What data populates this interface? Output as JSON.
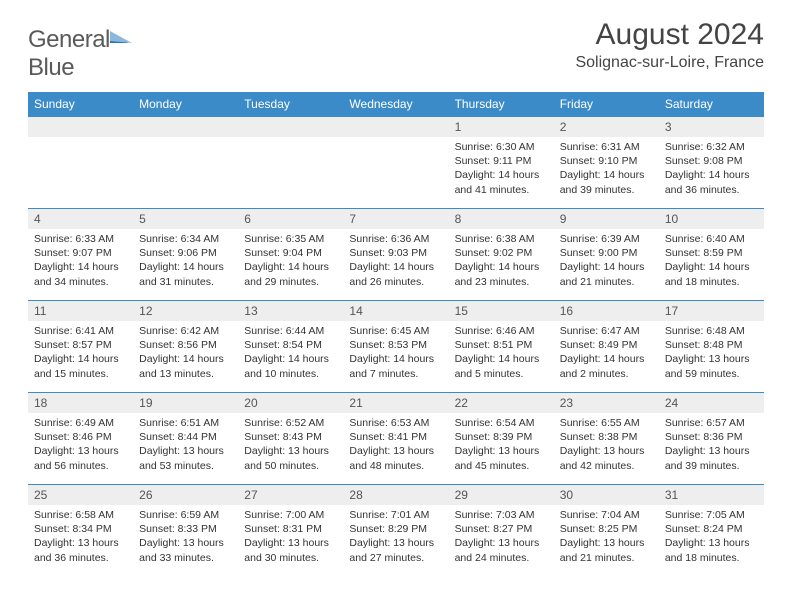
{
  "logo": {
    "word1": "General",
    "word2": "Blue"
  },
  "title": "August 2024",
  "location": "Solignac-sur-Loire, France",
  "colors": {
    "header_bg": "#3b8bc9",
    "header_text": "#ffffff",
    "daynum_bg": "#eeeeee",
    "border": "#3b8bc9",
    "text": "#333333",
    "logo_gray": "#5a5a5a",
    "logo_blue": "#2f73b5"
  },
  "day_headers": [
    "Sunday",
    "Monday",
    "Tuesday",
    "Wednesday",
    "Thursday",
    "Friday",
    "Saturday"
  ],
  "weeks": [
    [
      null,
      null,
      null,
      null,
      {
        "n": "1",
        "sr": "6:30 AM",
        "ss": "9:11 PM",
        "dl": "14 hours and 41 minutes."
      },
      {
        "n": "2",
        "sr": "6:31 AM",
        "ss": "9:10 PM",
        "dl": "14 hours and 39 minutes."
      },
      {
        "n": "3",
        "sr": "6:32 AM",
        "ss": "9:08 PM",
        "dl": "14 hours and 36 minutes."
      }
    ],
    [
      {
        "n": "4",
        "sr": "6:33 AM",
        "ss": "9:07 PM",
        "dl": "14 hours and 34 minutes."
      },
      {
        "n": "5",
        "sr": "6:34 AM",
        "ss": "9:06 PM",
        "dl": "14 hours and 31 minutes."
      },
      {
        "n": "6",
        "sr": "6:35 AM",
        "ss": "9:04 PM",
        "dl": "14 hours and 29 minutes."
      },
      {
        "n": "7",
        "sr": "6:36 AM",
        "ss": "9:03 PM",
        "dl": "14 hours and 26 minutes."
      },
      {
        "n": "8",
        "sr": "6:38 AM",
        "ss": "9:02 PM",
        "dl": "14 hours and 23 minutes."
      },
      {
        "n": "9",
        "sr": "6:39 AM",
        "ss": "9:00 PM",
        "dl": "14 hours and 21 minutes."
      },
      {
        "n": "10",
        "sr": "6:40 AM",
        "ss": "8:59 PM",
        "dl": "14 hours and 18 minutes."
      }
    ],
    [
      {
        "n": "11",
        "sr": "6:41 AM",
        "ss": "8:57 PM",
        "dl": "14 hours and 15 minutes."
      },
      {
        "n": "12",
        "sr": "6:42 AM",
        "ss": "8:56 PM",
        "dl": "14 hours and 13 minutes."
      },
      {
        "n": "13",
        "sr": "6:44 AM",
        "ss": "8:54 PM",
        "dl": "14 hours and 10 minutes."
      },
      {
        "n": "14",
        "sr": "6:45 AM",
        "ss": "8:53 PM",
        "dl": "14 hours and 7 minutes."
      },
      {
        "n": "15",
        "sr": "6:46 AM",
        "ss": "8:51 PM",
        "dl": "14 hours and 5 minutes."
      },
      {
        "n": "16",
        "sr": "6:47 AM",
        "ss": "8:49 PM",
        "dl": "14 hours and 2 minutes."
      },
      {
        "n": "17",
        "sr": "6:48 AM",
        "ss": "8:48 PM",
        "dl": "13 hours and 59 minutes."
      }
    ],
    [
      {
        "n": "18",
        "sr": "6:49 AM",
        "ss": "8:46 PM",
        "dl": "13 hours and 56 minutes."
      },
      {
        "n": "19",
        "sr": "6:51 AM",
        "ss": "8:44 PM",
        "dl": "13 hours and 53 minutes."
      },
      {
        "n": "20",
        "sr": "6:52 AM",
        "ss": "8:43 PM",
        "dl": "13 hours and 50 minutes."
      },
      {
        "n": "21",
        "sr": "6:53 AM",
        "ss": "8:41 PM",
        "dl": "13 hours and 48 minutes."
      },
      {
        "n": "22",
        "sr": "6:54 AM",
        "ss": "8:39 PM",
        "dl": "13 hours and 45 minutes."
      },
      {
        "n": "23",
        "sr": "6:55 AM",
        "ss": "8:38 PM",
        "dl": "13 hours and 42 minutes."
      },
      {
        "n": "24",
        "sr": "6:57 AM",
        "ss": "8:36 PM",
        "dl": "13 hours and 39 minutes."
      }
    ],
    [
      {
        "n": "25",
        "sr": "6:58 AM",
        "ss": "8:34 PM",
        "dl": "13 hours and 36 minutes."
      },
      {
        "n": "26",
        "sr": "6:59 AM",
        "ss": "8:33 PM",
        "dl": "13 hours and 33 minutes."
      },
      {
        "n": "27",
        "sr": "7:00 AM",
        "ss": "8:31 PM",
        "dl": "13 hours and 30 minutes."
      },
      {
        "n": "28",
        "sr": "7:01 AM",
        "ss": "8:29 PM",
        "dl": "13 hours and 27 minutes."
      },
      {
        "n": "29",
        "sr": "7:03 AM",
        "ss": "8:27 PM",
        "dl": "13 hours and 24 minutes."
      },
      {
        "n": "30",
        "sr": "7:04 AM",
        "ss": "8:25 PM",
        "dl": "13 hours and 21 minutes."
      },
      {
        "n": "31",
        "sr": "7:05 AM",
        "ss": "8:24 PM",
        "dl": "13 hours and 18 minutes."
      }
    ]
  ],
  "labels": {
    "sunrise": "Sunrise:",
    "sunset": "Sunset:",
    "daylight": "Daylight:"
  }
}
